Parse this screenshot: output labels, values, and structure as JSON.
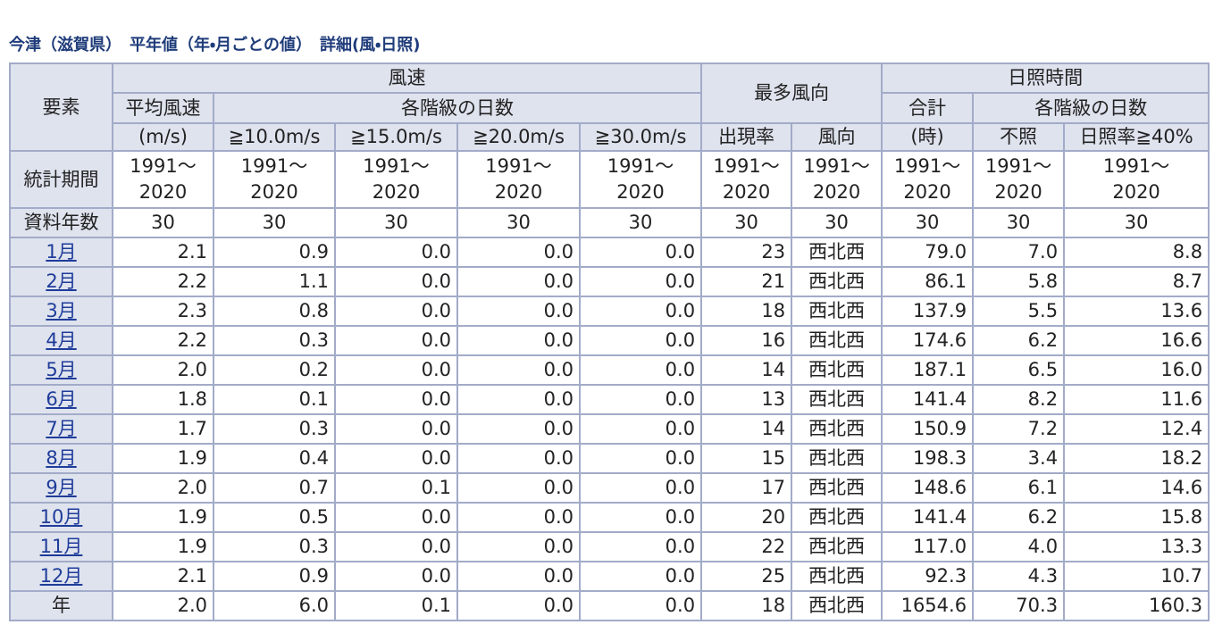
{
  "title": "今津（滋賀県）　平年値（年・月ごとの値）　詳細(風・日照)",
  "header": {
    "element": "要素",
    "wind_speed": "風速",
    "most_direction": "最多風向",
    "sunshine": "日照時間",
    "mean_speed": [
      "平均風速",
      "(m/s)"
    ],
    "class_days": "各階級の日数",
    "thresholds": [
      "≧10.0m/s",
      "≧15.0m/s",
      "≧20.0m/s",
      "≧30.0m/s"
    ],
    "frequency": "出現率",
    "direction": "風向",
    "total": [
      "合計",
      "(時)"
    ],
    "sun_class_days": "各階級の日数",
    "no_sun": "不照",
    "sun_ratio": "日照率≧40%"
  },
  "period": {
    "label": "統計期間",
    "values": [
      "1991～\n2020",
      "1991～\n2020",
      "1991～\n2020",
      "1991～\n2020",
      "1991～\n2020",
      "1991～\n2020",
      "1991～\n2020",
      "1991～\n2020",
      "1991～\n2020",
      "1991～\n2020"
    ]
  },
  "years": {
    "label": "資料年数",
    "values": [
      "30",
      "30",
      "30",
      "30",
      "30",
      "30",
      "30",
      "30",
      "30",
      "30"
    ]
  },
  "rows": [
    {
      "label": "1月",
      "values": [
        "2.1",
        "0.9",
        "0.0",
        "0.0",
        "0.0",
        "23",
        "西北西",
        "79.0",
        "7.0",
        "8.8"
      ]
    },
    {
      "label": "2月",
      "values": [
        "2.2",
        "1.1",
        "0.0",
        "0.0",
        "0.0",
        "21",
        "西北西",
        "86.1",
        "5.8",
        "8.7"
      ]
    },
    {
      "label": "3月",
      "values": [
        "2.3",
        "0.8",
        "0.0",
        "0.0",
        "0.0",
        "18",
        "西北西",
        "137.9",
        "5.5",
        "13.6"
      ]
    },
    {
      "label": "4月",
      "values": [
        "2.2",
        "0.3",
        "0.0",
        "0.0",
        "0.0",
        "16",
        "西北西",
        "174.6",
        "6.2",
        "16.6"
      ]
    },
    {
      "label": "5月",
      "values": [
        "2.0",
        "0.2",
        "0.0",
        "0.0",
        "0.0",
        "14",
        "西北西",
        "187.1",
        "6.5",
        "16.0"
      ]
    },
    {
      "label": "6月",
      "values": [
        "1.8",
        "0.1",
        "0.0",
        "0.0",
        "0.0",
        "13",
        "西北西",
        "141.4",
        "8.2",
        "11.6"
      ]
    },
    {
      "label": "7月",
      "values": [
        "1.7",
        "0.3",
        "0.0",
        "0.0",
        "0.0",
        "14",
        "西北西",
        "150.9",
        "7.2",
        "12.4"
      ]
    },
    {
      "label": "8月",
      "values": [
        "1.9",
        "0.4",
        "0.0",
        "0.0",
        "0.0",
        "15",
        "西北西",
        "198.3",
        "3.4",
        "18.2"
      ]
    },
    {
      "label": "9月",
      "values": [
        "2.0",
        "0.7",
        "0.1",
        "0.0",
        "0.0",
        "17",
        "西北西",
        "148.6",
        "6.1",
        "14.6"
      ]
    },
    {
      "label": "10月",
      "values": [
        "1.9",
        "0.5",
        "0.0",
        "0.0",
        "0.0",
        "20",
        "西北西",
        "141.4",
        "6.2",
        "15.8"
      ]
    },
    {
      "label": "11月",
      "values": [
        "1.9",
        "0.3",
        "0.0",
        "0.0",
        "0.0",
        "22",
        "西北西",
        "117.0",
        "4.0",
        "13.3"
      ]
    },
    {
      "label": "12月",
      "values": [
        "2.1",
        "0.9",
        "0.0",
        "0.0",
        "0.0",
        "25",
        "西北西",
        "92.3",
        "4.3",
        "10.7"
      ]
    }
  ],
  "annual": {
    "label": "年",
    "values": [
      "2.0",
      "6.0",
      "0.1",
      "0.0",
      "0.0",
      "18",
      "西北西",
      "1654.6",
      "70.3",
      "160.3"
    ]
  }
}
